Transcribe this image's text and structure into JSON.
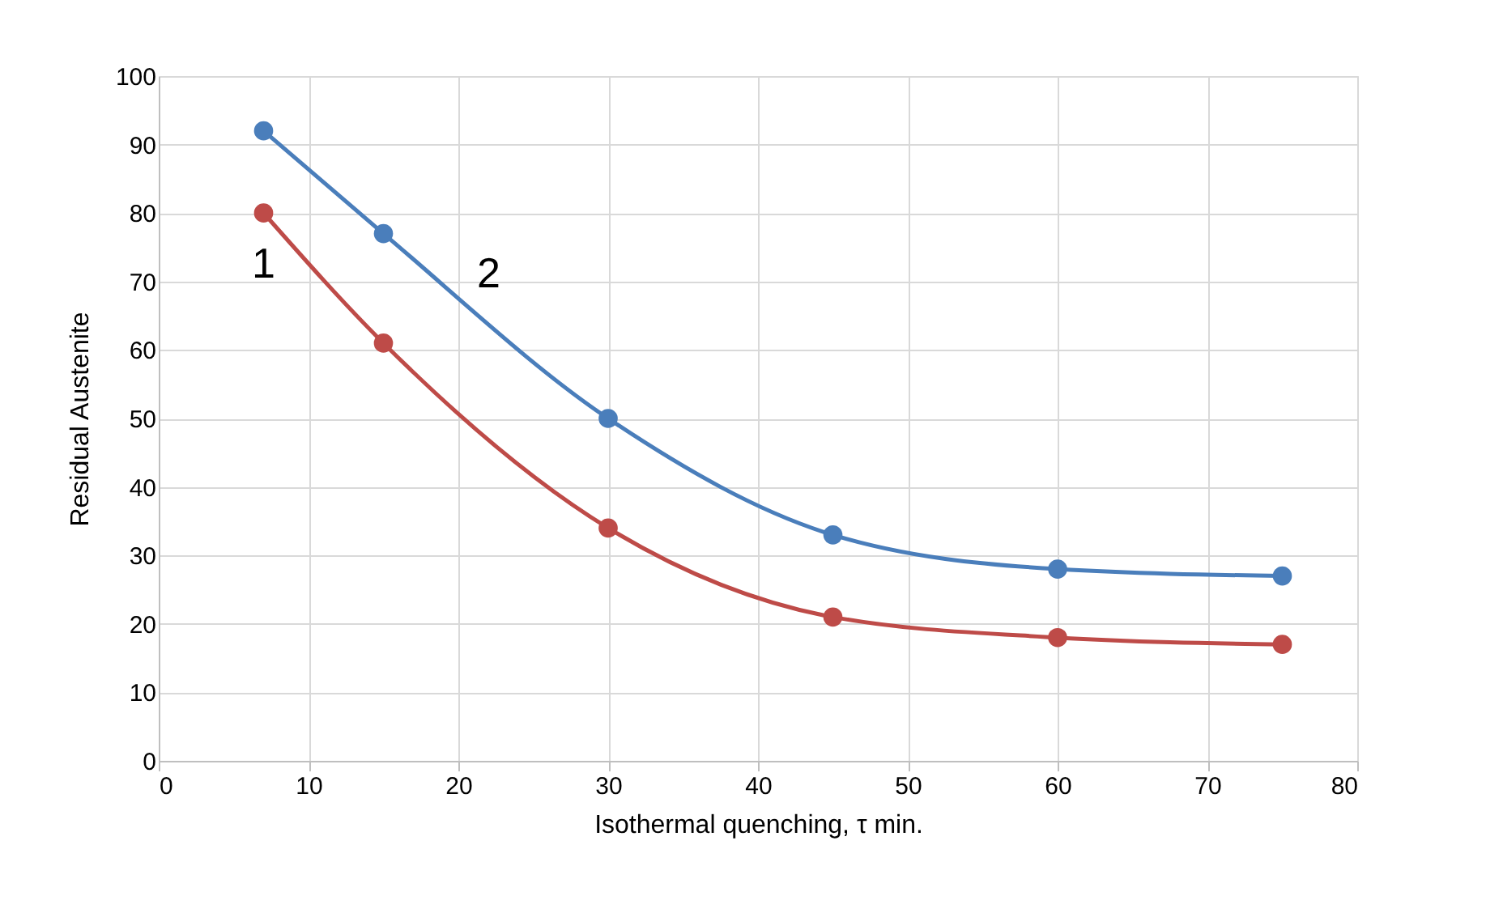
{
  "chart_data": {
    "type": "line",
    "xlabel": "Isothermal quenching, τ min.",
    "ylabel": "Residual Austenite",
    "xlim": [
      0,
      80
    ],
    "xticks": [
      0,
      10,
      20,
      30,
      40,
      50,
      60,
      70,
      80
    ],
    "ylim": [
      0,
      100
    ],
    "yticks": [
      0,
      10,
      20,
      30,
      40,
      50,
      60,
      70,
      80,
      90,
      100
    ],
    "grid": true,
    "legend": false,
    "marker": "circle",
    "line_style": "solid",
    "series": [
      {
        "name": "1",
        "color": "#be4b48",
        "x": [
          7,
          15,
          30,
          45,
          60,
          75
        ],
        "values": [
          80,
          61,
          34,
          21,
          18,
          17
        ]
      },
      {
        "name": "2",
        "color": "#4a7ebb",
        "x": [
          7,
          15,
          30,
          45,
          60,
          75
        ],
        "values": [
          92,
          77,
          50,
          33,
          28,
          27
        ]
      }
    ]
  }
}
